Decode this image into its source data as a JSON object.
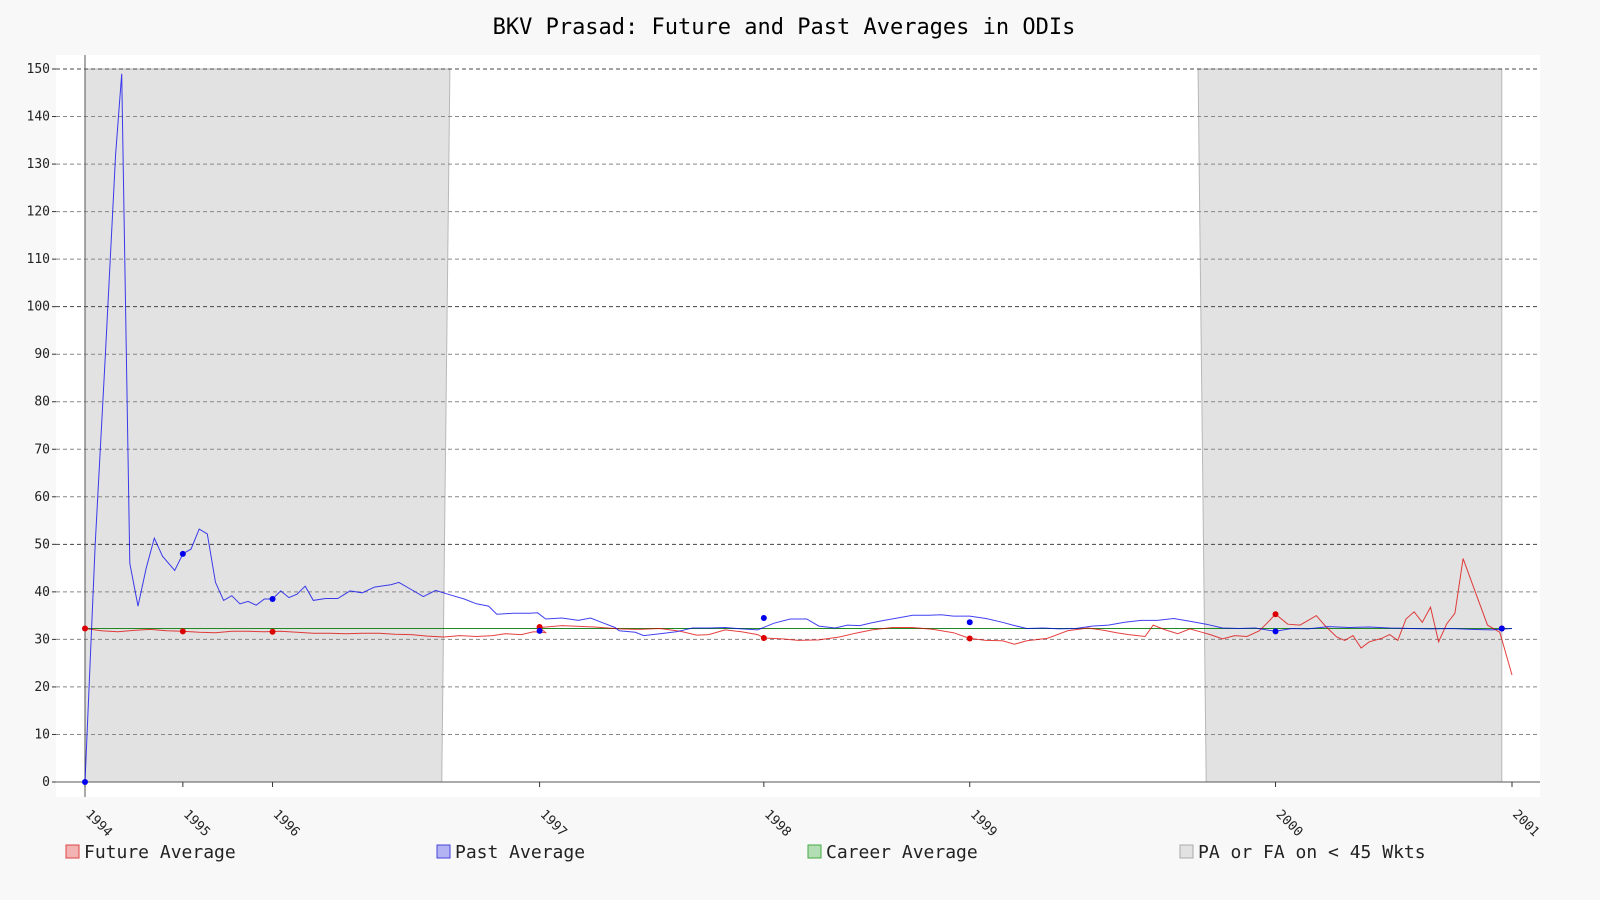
{
  "chart_data": {
    "type": "line",
    "title": "BKV Prasad: Future and Past Averages in ODIs",
    "xlabel": "",
    "ylabel": "",
    "ylim": [
      0,
      150
    ],
    "xlim": [
      1994.0,
      2001.0
    ],
    "yticks": [
      0,
      10,
      20,
      30,
      40,
      50,
      60,
      70,
      80,
      90,
      100,
      110,
      120,
      130,
      140,
      150
    ],
    "xticks": [
      {
        "label": "1994",
        "x": 1994.0
      },
      {
        "label": "1995",
        "x": 1994.48
      },
      {
        "label": "1996",
        "x": 1994.92
      },
      {
        "label": "1997",
        "x": 1996.23
      },
      {
        "label": "1998",
        "x": 1997.33
      },
      {
        "label": "1999",
        "x": 1998.34
      },
      {
        "label": "2000",
        "x": 1999.84
      },
      {
        "label": "2001",
        "x": 2001.0
      }
    ],
    "grid": "horizontal dashed",
    "shaded_regions": [
      {
        "top": [
          1994.0,
          1995.79
        ],
        "bottom": [
          1994.0,
          1995.75
        ]
      },
      {
        "top": [
          1999.46,
          2000.95
        ],
        "bottom": [
          1999.5,
          2000.95
        ]
      }
    ],
    "career_average": 32.3,
    "series": [
      {
        "name": "Future Average",
        "color": "#dd0000",
        "points": [
          [
            1994.0,
            32.3
          ],
          [
            1994.08,
            31.8
          ],
          [
            1994.16,
            31.6
          ],
          [
            1994.24,
            31.9
          ],
          [
            1994.32,
            32.1
          ],
          [
            1994.4,
            31.8
          ],
          [
            1994.48,
            31.7
          ],
          [
            1994.56,
            31.5
          ],
          [
            1994.64,
            31.4
          ],
          [
            1994.72,
            31.7
          ],
          [
            1994.8,
            31.7
          ],
          [
            1994.88,
            31.6
          ],
          [
            1994.96,
            31.7
          ],
          [
            1995.04,
            31.5
          ],
          [
            1995.12,
            31.3
          ],
          [
            1995.2,
            31.3
          ],
          [
            1995.28,
            31.2
          ],
          [
            1995.36,
            31.3
          ],
          [
            1995.44,
            31.3
          ],
          [
            1995.52,
            31.1
          ],
          [
            1995.6,
            31.0
          ],
          [
            1995.68,
            30.7
          ],
          [
            1995.76,
            30.5
          ],
          [
            1995.84,
            30.8
          ],
          [
            1995.92,
            30.6
          ],
          [
            1996.0,
            30.8
          ],
          [
            1996.06,
            31.2
          ],
          [
            1996.14,
            31.0
          ],
          [
            1996.2,
            31.6
          ],
          [
            1996.26,
            31.4
          ],
          [
            1996.23,
            32.5
          ],
          [
            1996.34,
            32.9
          ],
          [
            1996.5,
            32.6
          ],
          [
            1996.62,
            32.2
          ],
          [
            1996.72,
            32.1
          ],
          [
            1996.82,
            32.3
          ],
          [
            1996.92,
            31.7
          ],
          [
            1997.0,
            30.9
          ],
          [
            1997.06,
            31.0
          ],
          [
            1997.14,
            32.0
          ],
          [
            1997.22,
            31.6
          ],
          [
            1997.3,
            31.0
          ],
          [
            1997.33,
            30.3
          ],
          [
            1997.42,
            30.1
          ],
          [
            1997.5,
            29.8
          ],
          [
            1997.6,
            29.9
          ],
          [
            1997.7,
            30.5
          ],
          [
            1997.78,
            31.3
          ],
          [
            1997.86,
            32.0
          ],
          [
            1997.96,
            32.5
          ],
          [
            1998.06,
            32.5
          ],
          [
            1998.16,
            32.1
          ],
          [
            1998.26,
            31.4
          ],
          [
            1998.34,
            30.2
          ],
          [
            1998.42,
            29.8
          ],
          [
            1998.5,
            29.7
          ],
          [
            1998.56,
            29.0
          ],
          [
            1998.62,
            29.7
          ],
          [
            1998.72,
            30.2
          ],
          [
            1998.82,
            31.8
          ],
          [
            1998.92,
            32.4
          ],
          [
            1999.0,
            31.9
          ],
          [
            1999.06,
            31.4
          ],
          [
            1999.12,
            31.0
          ],
          [
            1999.2,
            30.6
          ],
          [
            1999.24,
            33.0
          ],
          [
            1999.3,
            32.0
          ],
          [
            1999.36,
            31.2
          ],
          [
            1999.42,
            32.2
          ],
          [
            1999.48,
            31.5
          ],
          [
            1999.52,
            31.0
          ],
          [
            1999.58,
            30.1
          ],
          [
            1999.64,
            30.8
          ],
          [
            1999.7,
            30.6
          ],
          [
            1999.76,
            31.8
          ],
          [
            1999.8,
            33.5
          ],
          [
            1999.84,
            35.3
          ],
          [
            1999.9,
            33.2
          ],
          [
            1999.96,
            33.0
          ],
          [
            2000.0,
            34.0
          ],
          [
            2000.04,
            35.0
          ],
          [
            2000.08,
            33.0
          ],
          [
            2000.14,
            30.5
          ],
          [
            2000.18,
            29.8
          ],
          [
            2000.22,
            30.8
          ],
          [
            2000.26,
            28.2
          ],
          [
            2000.3,
            29.5
          ],
          [
            2000.36,
            30.2
          ],
          [
            2000.4,
            31.0
          ],
          [
            2000.44,
            29.8
          ],
          [
            2000.48,
            34.3
          ],
          [
            2000.52,
            35.8
          ],
          [
            2000.56,
            33.6
          ],
          [
            2000.6,
            36.8
          ],
          [
            2000.64,
            29.5
          ],
          [
            2000.68,
            33.3
          ],
          [
            2000.72,
            35.5
          ],
          [
            2000.76,
            47.0
          ],
          [
            2000.82,
            40.0
          ],
          [
            2000.88,
            33.0
          ],
          [
            2000.94,
            31.5
          ],
          [
            2001.0,
            22.5
          ]
        ]
      },
      {
        "name": "Past Average",
        "color": "#0000ee",
        "points": [
          [
            1994.0,
            0.0
          ],
          [
            1994.05,
            50.0
          ],
          [
            1994.1,
            90.0
          ],
          [
            1994.15,
            132.0
          ],
          [
            1994.18,
            149.0
          ],
          [
            1994.22,
            46.0
          ],
          [
            1994.26,
            37.0
          ],
          [
            1994.3,
            45.0
          ],
          [
            1994.34,
            51.3
          ],
          [
            1994.38,
            47.5
          ],
          [
            1994.44,
            44.5
          ],
          [
            1994.48,
            48.0
          ],
          [
            1994.52,
            49.0
          ],
          [
            1994.56,
            53.2
          ],
          [
            1994.6,
            52.2
          ],
          [
            1994.64,
            42.0
          ],
          [
            1994.68,
            38.2
          ],
          [
            1994.72,
            39.2
          ],
          [
            1994.76,
            37.5
          ],
          [
            1994.8,
            38.0
          ],
          [
            1994.84,
            37.2
          ],
          [
            1994.88,
            38.5
          ],
          [
            1994.92,
            38.5
          ],
          [
            1994.96,
            40.2
          ],
          [
            1995.0,
            38.8
          ],
          [
            1995.04,
            39.5
          ],
          [
            1995.08,
            41.2
          ],
          [
            1995.12,
            38.2
          ],
          [
            1995.18,
            38.6
          ],
          [
            1995.24,
            38.6
          ],
          [
            1995.3,
            40.2
          ],
          [
            1995.36,
            39.8
          ],
          [
            1995.42,
            41.0
          ],
          [
            1995.5,
            41.5
          ],
          [
            1995.54,
            42.0
          ],
          [
            1995.6,
            40.5
          ],
          [
            1995.66,
            39.0
          ],
          [
            1995.72,
            40.3
          ],
          [
            1995.78,
            39.5
          ],
          [
            1995.86,
            38.5
          ],
          [
            1995.92,
            37.5
          ],
          [
            1995.98,
            37.0
          ],
          [
            1996.02,
            35.3
          ],
          [
            1996.1,
            35.5
          ],
          [
            1996.18,
            35.5
          ],
          [
            1996.22,
            35.6
          ],
          [
            1996.26,
            34.3
          ],
          [
            1996.34,
            34.5
          ],
          [
            1996.42,
            34.0
          ],
          [
            1996.48,
            34.5
          ],
          [
            1996.54,
            33.5
          ],
          [
            1996.6,
            32.5
          ],
          [
            1996.62,
            31.8
          ],
          [
            1996.7,
            31.5
          ],
          [
            1996.74,
            30.8
          ],
          [
            1996.82,
            31.2
          ],
          [
            1996.9,
            31.6
          ],
          [
            1996.98,
            32.4
          ],
          [
            1997.06,
            32.4
          ],
          [
            1997.14,
            32.5
          ],
          [
            1997.22,
            32.2
          ],
          [
            1997.3,
            32.0
          ],
          [
            1997.38,
            33.4
          ],
          [
            1997.46,
            34.3
          ],
          [
            1997.54,
            34.3
          ],
          [
            1997.6,
            32.8
          ],
          [
            1997.68,
            32.4
          ],
          [
            1997.74,
            33.0
          ],
          [
            1997.8,
            32.9
          ],
          [
            1997.86,
            33.5
          ],
          [
            1997.92,
            34.0
          ],
          [
            1998.0,
            34.6
          ],
          [
            1998.06,
            35.1
          ],
          [
            1998.14,
            35.1
          ],
          [
            1998.2,
            35.2
          ],
          [
            1998.26,
            34.9
          ],
          [
            1998.34,
            34.9
          ],
          [
            1998.42,
            34.4
          ],
          [
            1998.5,
            33.6
          ],
          [
            1998.56,
            32.9
          ],
          [
            1998.62,
            32.3
          ],
          [
            1998.7,
            32.4
          ],
          [
            1998.78,
            32.2
          ],
          [
            1998.86,
            32.3
          ],
          [
            1998.94,
            32.8
          ],
          [
            1999.02,
            33.0
          ],
          [
            1999.1,
            33.6
          ],
          [
            1999.18,
            34.0
          ],
          [
            1999.26,
            34.0
          ],
          [
            1999.34,
            34.4
          ],
          [
            1999.42,
            33.8
          ],
          [
            1999.5,
            33.2
          ],
          [
            1999.58,
            32.4
          ],
          [
            1999.66,
            32.3
          ],
          [
            1999.74,
            32.4
          ],
          [
            1999.84,
            31.7
          ],
          [
            1999.92,
            32.3
          ],
          [
            2000.0,
            32.2
          ],
          [
            2000.1,
            32.7
          ],
          [
            2000.2,
            32.5
          ],
          [
            2000.3,
            32.6
          ],
          [
            2000.4,
            32.4
          ],
          [
            2000.5,
            32.3
          ],
          [
            2000.6,
            32.2
          ],
          [
            2000.7,
            32.3
          ],
          [
            2000.8,
            32.1
          ],
          [
            2000.9,
            32.0
          ],
          [
            2001.0,
            32.3
          ]
        ]
      }
    ],
    "markers": {
      "past": [
        [
          1994.0,
          0.0
        ],
        [
          1994.48,
          48.0
        ],
        [
          1994.92,
          38.5
        ],
        [
          1996.23,
          31.8
        ],
        [
          1997.33,
          34.5
        ],
        [
          1998.34,
          33.6
        ],
        [
          1999.84,
          31.7
        ],
        [
          2000.95,
          32.3
        ]
      ],
      "future": [
        [
          1994.0,
          32.3
        ],
        [
          1994.48,
          31.7
        ],
        [
          1994.92,
          31.6
        ],
        [
          1996.23,
          32.6
        ],
        [
          1997.33,
          30.3
        ],
        [
          1998.34,
          30.2
        ],
        [
          1999.84,
          35.3
        ],
        [
          2000.95,
          32.3
        ]
      ]
    },
    "legend": {
      "placement": "bottom",
      "items": [
        {
          "label": "Future Average",
          "fill": "#f4b3b3",
          "stroke": "#dd4444"
        },
        {
          "label": "Past Average",
          "fill": "#b3b3f4",
          "stroke": "#4444dd"
        },
        {
          "label": "Career Average",
          "fill": "#b3ddb3",
          "stroke": "#44aa44"
        },
        {
          "label": "PA or FA on < 45 Wkts",
          "fill": "#e2e2e2",
          "stroke": "#aaaaaa"
        }
      ]
    },
    "colors": {
      "future": "#dd0000",
      "past": "#0000ee",
      "career": "#228822",
      "shade": "#e2e2e2",
      "plot_bg": "#ffffff",
      "page_bg": "#f8f8f8"
    }
  }
}
